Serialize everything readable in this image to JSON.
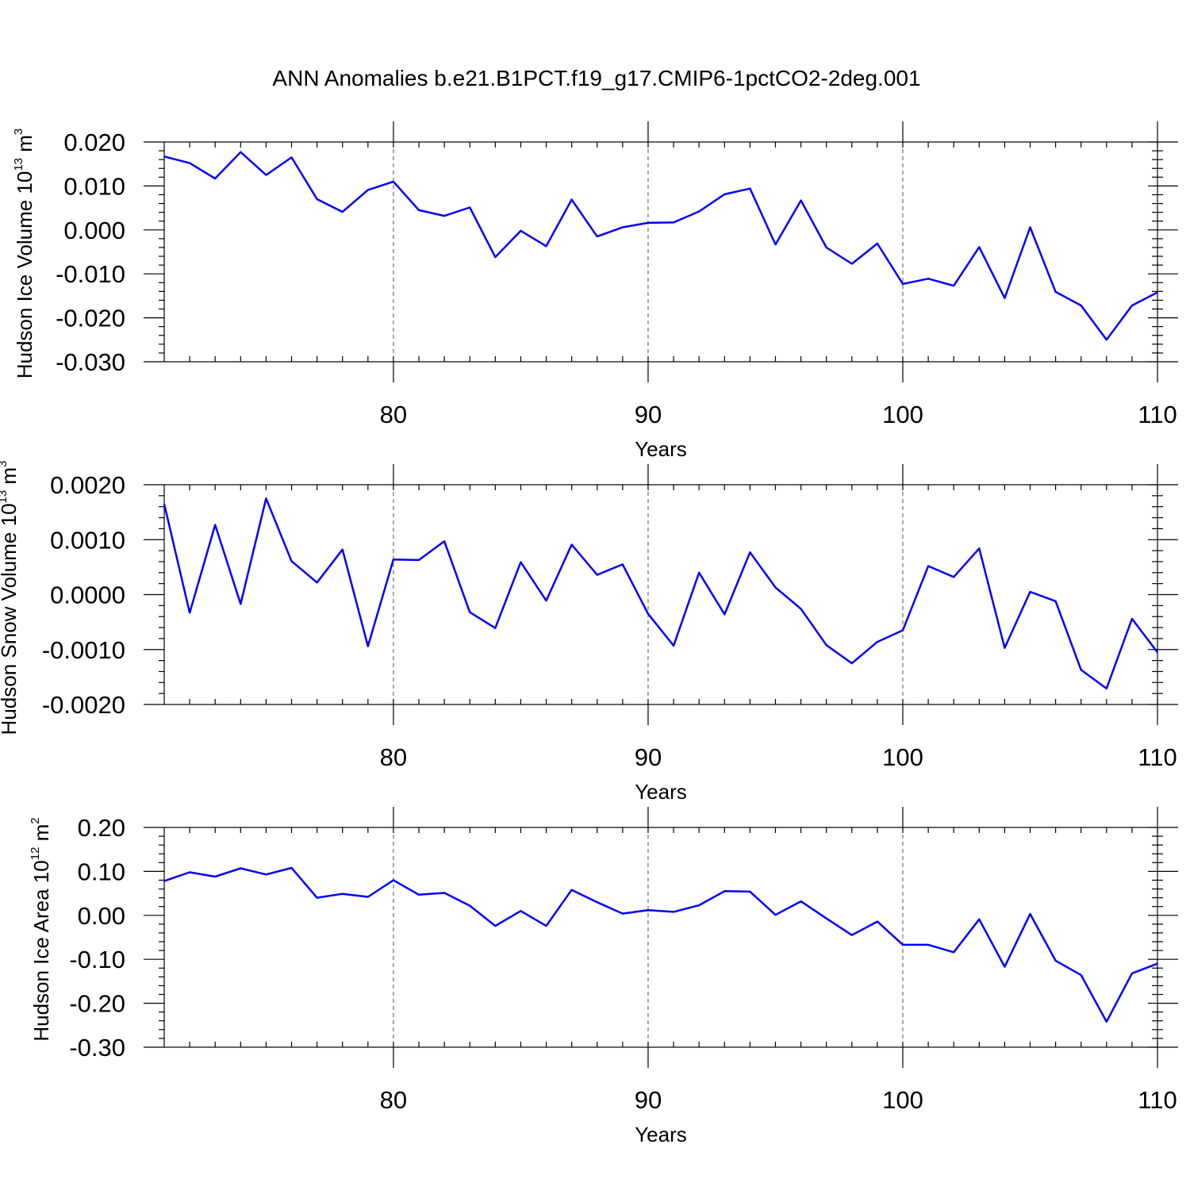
{
  "title": "ANN Anomalies b.e21.B1PCT.f19_g17.CMIP6-1pctCO2-2deg.001",
  "colors": {
    "line": "#0000ff",
    "axes": "#000000",
    "background": "#ffffff"
  },
  "chart_data": [
    {
      "type": "line",
      "ylabel_main": "Hudson Ice Volume 10",
      "ylabel_exp": "13",
      "ylabel_unit": " m",
      "ylabel_unit_exp": "3",
      "xlabel": "Years",
      "xlim": [
        71,
        110
      ],
      "ylim": [
        -0.03,
        0.02
      ],
      "xticks": [
        80,
        90,
        100,
        110
      ],
      "xtick_labels": [
        "80",
        "90",
        "100",
        "110"
      ],
      "yticks": [
        -0.03,
        -0.02,
        -0.01,
        0.0,
        0.01,
        0.02
      ],
      "ytick_labels": [
        "-0.030",
        "-0.020",
        "-0.010",
        "0.000",
        "0.010",
        "0.020"
      ],
      "grid_x": [
        80,
        90,
        100
      ],
      "x": [
        71,
        72,
        73,
        74,
        75,
        76,
        77,
        78,
        79,
        80,
        81,
        82,
        83,
        84,
        85,
        86,
        87,
        88,
        89,
        90,
        91,
        92,
        93,
        94,
        95,
        96,
        97,
        98,
        99,
        100,
        101,
        102,
        103,
        104,
        105,
        106,
        107,
        108,
        109,
        110
      ],
      "values": [
        0.0167,
        0.0152,
        0.0117,
        0.0177,
        0.0125,
        0.0165,
        0.007,
        0.0041,
        0.0091,
        0.011,
        0.0045,
        0.0032,
        0.0051,
        -0.0062,
        -0.0002,
        -0.0037,
        0.0069,
        -0.0015,
        0.0006,
        0.0016,
        0.0017,
        0.0042,
        0.0081,
        0.0094,
        -0.0033,
        0.0067,
        -0.004,
        -0.0077,
        -0.0031,
        -0.0123,
        -0.0111,
        -0.0127,
        -0.0039,
        -0.0155,
        0.0006,
        -0.0141,
        -0.0172,
        -0.025,
        -0.0172,
        -0.0142
      ]
    },
    {
      "type": "line",
      "ylabel_main": "Hudson Snow Volume 10",
      "ylabel_exp": "13",
      "ylabel_unit": " m",
      "ylabel_unit_exp": "3",
      "xlabel": "Years",
      "xlim": [
        71,
        110
      ],
      "ylim": [
        -0.002,
        0.002
      ],
      "xticks": [
        80,
        90,
        100,
        110
      ],
      "xtick_labels": [
        "80",
        "90",
        "100",
        "110"
      ],
      "yticks": [
        -0.002,
        -0.001,
        0.0,
        0.001,
        0.002
      ],
      "ytick_labels": [
        "-0.0020",
        "-0.0010",
        "0.0000",
        "0.0010",
        "0.0020"
      ],
      "grid_x": [
        80,
        90,
        100
      ],
      "x": [
        71,
        72,
        73,
        74,
        75,
        76,
        77,
        78,
        79,
        80,
        81,
        82,
        83,
        84,
        85,
        86,
        87,
        88,
        89,
        90,
        91,
        92,
        93,
        94,
        95,
        96,
        97,
        98,
        99,
        100,
        101,
        102,
        103,
        104,
        105,
        106,
        107,
        108,
        109,
        110
      ],
      "values": [
        0.00165,
        -0.00033,
        0.00127,
        -0.00017,
        0.00175,
        0.00061,
        0.00022,
        0.00082,
        -0.00094,
        0.00064,
        0.00063,
        0.00097,
        -0.00032,
        -0.00061,
        0.00059,
        -0.00011,
        0.00091,
        0.00036,
        0.00055,
        -0.00035,
        -0.00093,
        0.0004,
        -0.00036,
        0.00077,
        0.00013,
        -0.00026,
        -0.00092,
        -0.00125,
        -0.00086,
        -0.00065,
        0.00052,
        0.00032,
        0.00084,
        -0.00097,
        5e-05,
        -0.00012,
        -0.00137,
        -0.00171,
        -0.00044,
        -0.00105
      ]
    },
    {
      "type": "line",
      "ylabel_main": "Hudson Ice Area 10",
      "ylabel_exp": "12",
      "ylabel_unit": " m",
      "ylabel_unit_exp": "2",
      "xlabel": "Years",
      "xlim": [
        71,
        110
      ],
      "ylim": [
        -0.3,
        0.2
      ],
      "xticks": [
        80,
        90,
        100,
        110
      ],
      "xtick_labels": [
        "80",
        "90",
        "100",
        "110"
      ],
      "yticks": [
        -0.3,
        -0.2,
        -0.1,
        0.0,
        0.1,
        0.2
      ],
      "ytick_labels": [
        "-0.30",
        "-0.20",
        "-0.10",
        "0.00",
        "0.10",
        "0.20"
      ],
      "grid_x": [
        80,
        90,
        100
      ],
      "x": [
        71,
        72,
        73,
        74,
        75,
        76,
        77,
        78,
        79,
        80,
        81,
        82,
        83,
        84,
        85,
        86,
        87,
        88,
        89,
        90,
        91,
        92,
        93,
        94,
        95,
        96,
        97,
        98,
        99,
        100,
        101,
        102,
        103,
        104,
        105,
        106,
        107,
        108,
        109,
        110
      ],
      "values": [
        0.078,
        0.098,
        0.088,
        0.107,
        0.093,
        0.108,
        0.04,
        0.049,
        0.042,
        0.08,
        0.047,
        0.051,
        0.022,
        -0.024,
        0.01,
        -0.024,
        0.058,
        0.03,
        0.004,
        0.012,
        0.008,
        0.023,
        0.055,
        0.054,
        0.001,
        0.032,
        -0.007,
        -0.045,
        -0.014,
        -0.067,
        -0.067,
        -0.084,
        -0.009,
        -0.117,
        0.003,
        -0.103,
        -0.136,
        -0.242,
        -0.132,
        -0.11
      ]
    }
  ]
}
